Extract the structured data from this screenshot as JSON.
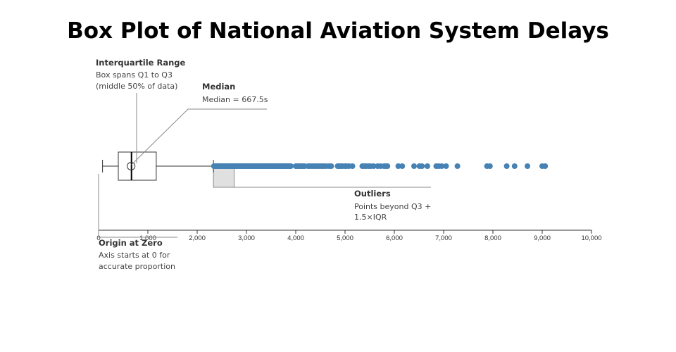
{
  "colors": {
    "point": "#4682b4",
    "box_stroke": "#333333",
    "median": "#000000",
    "annotation_line": "#888888",
    "axis": "#333333",
    "highlight_fill": "#e0e0e0"
  },
  "chart_data": {
    "type": "box",
    "title": "Box Plot of National Aviation System Delays",
    "xlabel": "",
    "ylabel": "",
    "xlim": [
      0,
      10000
    ],
    "ticks": [
      {
        "value": 0,
        "label": "0"
      },
      {
        "value": 1000,
        "label": "1,000"
      },
      {
        "value": 2000,
        "label": "2,000"
      },
      {
        "value": 3000,
        "label": "3,000"
      },
      {
        "value": 4000,
        "label": "4,000"
      },
      {
        "value": 5000,
        "label": "5,000"
      },
      {
        "value": 6000,
        "label": "6,000"
      },
      {
        "value": 7000,
        "label": "7,000"
      },
      {
        "value": 8000,
        "label": "8,000"
      },
      {
        "value": 9000,
        "label": "9,000"
      },
      {
        "value": 10000,
        "label": "10,000"
      }
    ],
    "grid": false,
    "box": {
      "whisker_low": 80,
      "q1": 400,
      "median": 667.5,
      "mean": 660,
      "q3": 1170,
      "whisker_high": 2330
    },
    "outliers": [
      2340,
      2360,
      2380,
      2400,
      2420,
      2440,
      2460,
      2480,
      2500,
      2520,
      2540,
      2560,
      2580,
      2600,
      2620,
      2640,
      2660,
      2680,
      2700,
      2720,
      2740,
      2760,
      2780,
      2800,
      2820,
      2840,
      2860,
      2880,
      2900,
      2920,
      2940,
      2960,
      2980,
      3000,
      3020,
      3040,
      3060,
      3080,
      3100,
      3120,
      3140,
      3160,
      3180,
      3200,
      3220,
      3240,
      3260,
      3280,
      3300,
      3320,
      3340,
      3360,
      3380,
      3400,
      3420,
      3440,
      3460,
      3480,
      3500,
      3520,
      3540,
      3560,
      3580,
      3600,
      3620,
      3640,
      3660,
      3680,
      3700,
      3720,
      3740,
      3760,
      3780,
      3800,
      3820,
      3840,
      3860,
      3880,
      3900,
      4000,
      4030,
      4060,
      4090,
      4120,
      4150,
      4180,
      4250,
      4290,
      4330,
      4370,
      4410,
      4450,
      4490,
      4530,
      4570,
      4620,
      4680,
      4720,
      4850,
      4880,
      4910,
      4950,
      5000,
      5030,
      5080,
      5150,
      5350,
      5390,
      5430,
      5480,
      5520,
      5580,
      5660,
      5720,
      5790,
      5830,
      5860,
      6080,
      6160,
      6400,
      6510,
      6560,
      6670,
      6850,
      6900,
      6960,
      7050,
      7280,
      7880,
      7940,
      8280,
      8440,
      8700,
      9000,
      9060
    ],
    "annotations": [
      {
        "title": "Interquartile Range",
        "lines": [
          "Box spans Q1 to Q3",
          "(middle 50% of data)"
        ]
      },
      {
        "title": "Median",
        "lines": [
          "Median = 667.5s"
        ]
      },
      {
        "title": "Outliers",
        "lines": [
          "Points beyond Q3 +",
          "1.5×IQR"
        ]
      },
      {
        "title": "Origin at Zero",
        "lines": [
          "Axis starts at 0 for",
          "accurate proportion"
        ]
      }
    ]
  }
}
